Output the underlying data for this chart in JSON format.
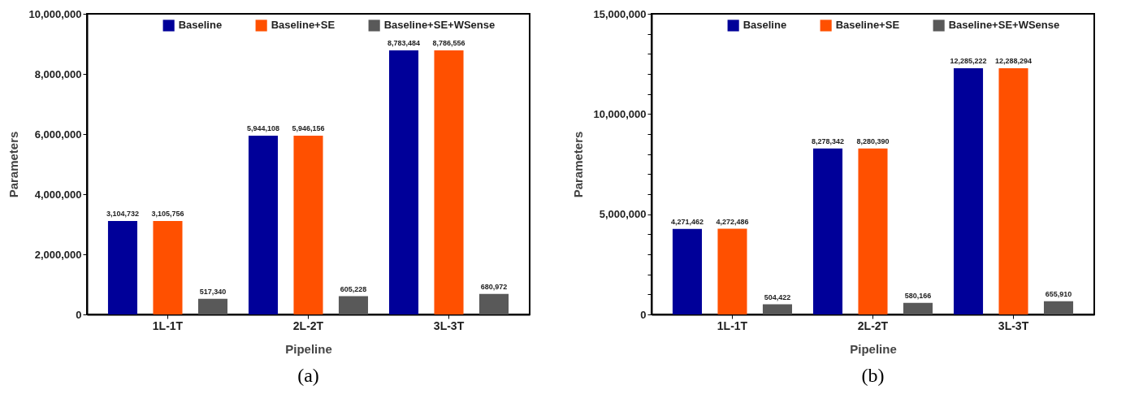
{
  "chart_data": [
    {
      "type": "bar",
      "title": "(a)",
      "xlabel": "Pipeline",
      "ylabel": "Parameters",
      "categories": [
        "1L-1T",
        "2L-2T",
        "3L-3T"
      ],
      "series": [
        {
          "name": "Baseline",
          "color": "#000099",
          "values": [
            3104732,
            5944108,
            8783484
          ],
          "value_labels": [
            "3,104,732",
            "5,944,108",
            "8,783,484"
          ]
        },
        {
          "name": "Baseline+SE",
          "color": "#ff5000",
          "values": [
            3105756,
            5946156,
            8786556
          ],
          "value_labels": [
            "3,105,756",
            "5,946,156",
            "8,786,556"
          ]
        },
        {
          "name": "Baseline+SE+WSense",
          "color": "#595959",
          "values": [
            517340,
            605228,
            680972
          ],
          "value_labels": [
            "517,340",
            "605,228",
            "680,972"
          ]
        }
      ],
      "ylim": [
        0,
        10000000
      ],
      "yticks": [
        {
          "value": 0,
          "label": "0"
        },
        {
          "value": 2000000,
          "label": "2,000,000"
        },
        {
          "value": 4000000,
          "label": "4,000,000"
        },
        {
          "value": 6000000,
          "label": "6,000,000"
        },
        {
          "value": 8000000,
          "label": "8,000,000"
        },
        {
          "value": 10000000,
          "label": "10,000,000"
        }
      ],
      "legend": "top",
      "grid": false
    },
    {
      "type": "bar",
      "title": "(b)",
      "xlabel": "Pipeline",
      "ylabel": "Parameters",
      "categories": [
        "1L-1T",
        "2L-2T",
        "3L-3T"
      ],
      "series": [
        {
          "name": "Baseline",
          "color": "#000099",
          "values": [
            4271462,
            8278342,
            12285222
          ],
          "value_labels": [
            "4,271,462",
            "8,278,342",
            "12,285,222"
          ]
        },
        {
          "name": "Baseline+SE",
          "color": "#ff5000",
          "values": [
            4272486,
            8280390,
            12288294
          ],
          "value_labels": [
            "4,272,486",
            "8,280,390",
            "12,288,294"
          ]
        },
        {
          "name": "Baseline+SE+WSense",
          "color": "#595959",
          "values": [
            504422,
            580166,
            655910
          ],
          "value_labels": [
            "504,422",
            "580,166",
            "655,910"
          ]
        }
      ],
      "ylim": [
        0,
        15000000
      ],
      "yticks": [
        {
          "value": 0,
          "label": "0"
        },
        {
          "value": 1000000,
          "label": null
        },
        {
          "value": 2000000,
          "label": null
        },
        {
          "value": 3000000,
          "label": null
        },
        {
          "value": 4000000,
          "label": null
        },
        {
          "value": 5000000,
          "label": "5,000,000"
        },
        {
          "value": 6000000,
          "label": null
        },
        {
          "value": 7000000,
          "label": null
        },
        {
          "value": 8000000,
          "label": null
        },
        {
          "value": 9000000,
          "label": null
        },
        {
          "value": 10000000,
          "label": "10,000,000"
        },
        {
          "value": 11000000,
          "label": null
        },
        {
          "value": 12000000,
          "label": null
        },
        {
          "value": 13000000,
          "label": null
        },
        {
          "value": 14000000,
          "label": null
        },
        {
          "value": 15000000,
          "label": "15,000,000"
        }
      ],
      "legend": "top",
      "grid": false
    }
  ]
}
